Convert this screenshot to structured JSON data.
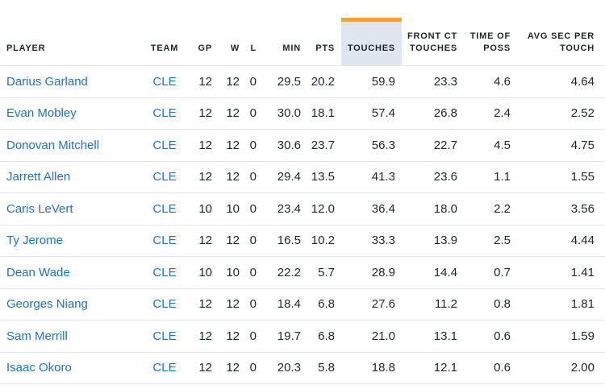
{
  "colors": {
    "accent_gold": "#E9A63C",
    "highlight_bg": "#DFE6EE",
    "link_blue": "#1D73BC",
    "header_text": "#1D252D",
    "divider": "#E5E6E8"
  },
  "table": {
    "columns": [
      {
        "key": "player",
        "label_lines": [
          "PLAYER"
        ],
        "align": "left",
        "highlight": false
      },
      {
        "key": "team",
        "label_lines": [
          "TEAM"
        ],
        "align": "center",
        "highlight": false
      },
      {
        "key": "gp",
        "label_lines": [
          "GP"
        ],
        "align": "right",
        "highlight": false
      },
      {
        "key": "w",
        "label_lines": [
          "W"
        ],
        "align": "right",
        "highlight": false
      },
      {
        "key": "l",
        "label_lines": [
          "L"
        ],
        "align": "right",
        "highlight": false
      },
      {
        "key": "min",
        "label_lines": [
          "MIN"
        ],
        "align": "right",
        "highlight": false
      },
      {
        "key": "pts",
        "label_lines": [
          "PTS"
        ],
        "align": "right",
        "highlight": false
      },
      {
        "key": "touches",
        "label_lines": [
          "TOUCHES"
        ],
        "align": "right",
        "highlight": true
      },
      {
        "key": "front_ct_touches",
        "label_lines": [
          "FRONT CT",
          "TOUCHES"
        ],
        "align": "right",
        "highlight": false
      },
      {
        "key": "time_of_poss",
        "label_lines": [
          "TIME OF",
          "POSS"
        ],
        "align": "right",
        "highlight": false
      },
      {
        "key": "avg_sec_per_touch",
        "label_lines": [
          "AVG SEC PER",
          "TOUCH"
        ],
        "align": "right",
        "highlight": false
      }
    ],
    "rows": [
      {
        "player": "Darius Garland",
        "team": "CLE",
        "gp": "12",
        "w": "12",
        "l": "0",
        "min": "29.5",
        "pts": "20.2",
        "touches": "59.9",
        "front_ct_touches": "23.3",
        "time_of_poss": "4.6",
        "avg_sec_per_touch": "4.64"
      },
      {
        "player": "Evan Mobley",
        "team": "CLE",
        "gp": "12",
        "w": "12",
        "l": "0",
        "min": "30.0",
        "pts": "18.1",
        "touches": "57.4",
        "front_ct_touches": "26.8",
        "time_of_poss": "2.4",
        "avg_sec_per_touch": "2.52"
      },
      {
        "player": "Donovan Mitchell",
        "team": "CLE",
        "gp": "12",
        "w": "12",
        "l": "0",
        "min": "30.6",
        "pts": "23.7",
        "touches": "56.3",
        "front_ct_touches": "22.7",
        "time_of_poss": "4.5",
        "avg_sec_per_touch": "4.75"
      },
      {
        "player": "Jarrett Allen",
        "team": "CLE",
        "gp": "12",
        "w": "12",
        "l": "0",
        "min": "29.4",
        "pts": "13.5",
        "touches": "41.3",
        "front_ct_touches": "23.6",
        "time_of_poss": "1.1",
        "avg_sec_per_touch": "1.55"
      },
      {
        "player": "Caris LeVert",
        "team": "CLE",
        "gp": "10",
        "w": "10",
        "l": "0",
        "min": "23.4",
        "pts": "12.0",
        "touches": "36.4",
        "front_ct_touches": "18.0",
        "time_of_poss": "2.2",
        "avg_sec_per_touch": "3.56"
      },
      {
        "player": "Ty Jerome",
        "team": "CLE",
        "gp": "12",
        "w": "12",
        "l": "0",
        "min": "16.5",
        "pts": "10.2",
        "touches": "33.3",
        "front_ct_touches": "13.9",
        "time_of_poss": "2.5",
        "avg_sec_per_touch": "4.44"
      },
      {
        "player": "Dean Wade",
        "team": "CLE",
        "gp": "10",
        "w": "10",
        "l": "0",
        "min": "22.2",
        "pts": "5.7",
        "touches": "28.9",
        "front_ct_touches": "14.4",
        "time_of_poss": "0.7",
        "avg_sec_per_touch": "1.41"
      },
      {
        "player": "Georges Niang",
        "team": "CLE",
        "gp": "12",
        "w": "12",
        "l": "0",
        "min": "18.4",
        "pts": "6.8",
        "touches": "27.6",
        "front_ct_touches": "11.2",
        "time_of_poss": "0.8",
        "avg_sec_per_touch": "1.81"
      },
      {
        "player": "Sam Merrill",
        "team": "CLE",
        "gp": "12",
        "w": "12",
        "l": "0",
        "min": "19.7",
        "pts": "6.8",
        "touches": "21.0",
        "front_ct_touches": "13.1",
        "time_of_poss": "0.6",
        "avg_sec_per_touch": "1.59"
      },
      {
        "player": "Isaac Okoro",
        "team": "CLE",
        "gp": "12",
        "w": "12",
        "l": "0",
        "min": "20.3",
        "pts": "5.8",
        "touches": "18.8",
        "front_ct_touches": "12.1",
        "time_of_poss": "0.6",
        "avg_sec_per_touch": "2.00"
      }
    ]
  }
}
